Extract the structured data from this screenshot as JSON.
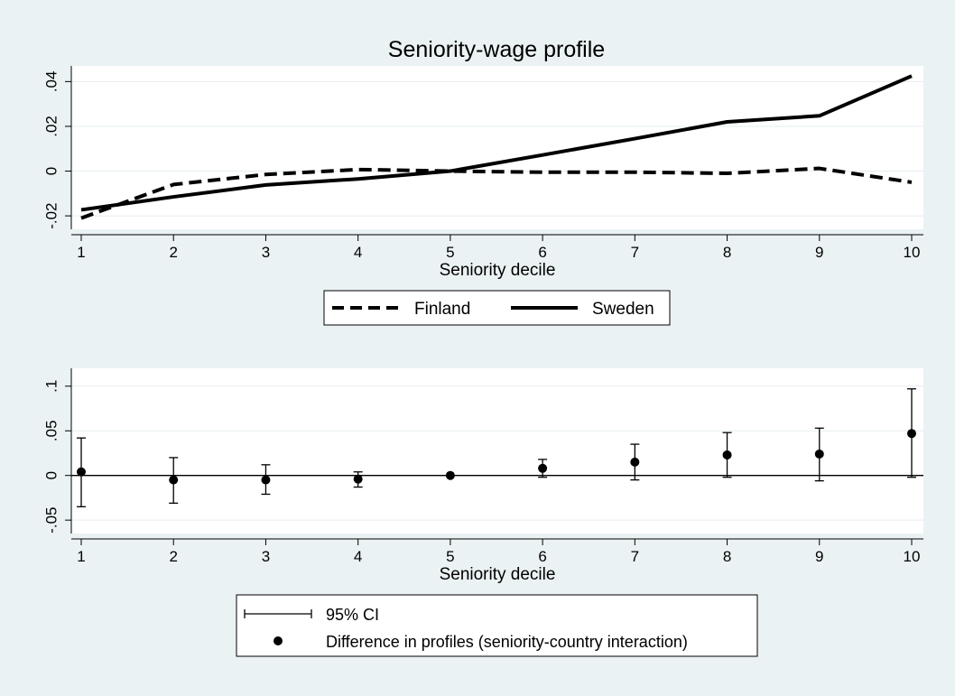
{
  "chart_data": [
    {
      "type": "line",
      "title": "Seniority-wage profile",
      "xlabel": "Seniority decile",
      "ylabel": "",
      "x": [
        1,
        2,
        3,
        4,
        5,
        6,
        7,
        8,
        9,
        10
      ],
      "xticks": [
        "1",
        "2",
        "3",
        "4",
        "5",
        "6",
        "7",
        "8",
        "9",
        "10"
      ],
      "xlim": [
        1,
        10
      ],
      "ylim": [
        -0.026,
        0.047
      ],
      "yticks": [
        -0.02,
        0,
        0.02,
        0.04
      ],
      "ytick_labels": [
        "-.02",
        "0",
        ".02",
        ".04"
      ],
      "grid": true,
      "legend_position": "bottom",
      "series": [
        {
          "name": "Finland",
          "style": "dashed",
          "values": [
            -0.021,
            -0.006,
            -0.0015,
            0.0007,
            0.0,
            -0.0005,
            -0.0005,
            -0.001,
            0.0012,
            -0.005
          ]
        },
        {
          "name": "Sweden",
          "style": "solid",
          "values": [
            -0.0173,
            -0.0115,
            -0.0062,
            -0.0035,
            0.0,
            0.0072,
            0.0145,
            0.022,
            0.0247,
            0.0425
          ]
        }
      ]
    },
    {
      "type": "scatter",
      "title": "",
      "xlabel": "Seniority decile",
      "ylabel": "",
      "x": [
        1,
        2,
        3,
        4,
        5,
        6,
        7,
        8,
        9,
        10
      ],
      "xticks": [
        "1",
        "2",
        "3",
        "4",
        "5",
        "6",
        "7",
        "8",
        "9",
        "10"
      ],
      "xlim": [
        1,
        10
      ],
      "ylim": [
        -0.065,
        0.12
      ],
      "yticks": [
        -0.05,
        0,
        0.05,
        0.1
      ],
      "ytick_labels": [
        "-.05",
        "0",
        ".05",
        ".1"
      ],
      "grid": true,
      "reference_line": 0,
      "legend_position": "bottom",
      "series": [
        {
          "name": "Difference in profiles (seniority-country interaction)",
          "values": [
            0.004,
            -0.005,
            -0.005,
            -0.004,
            0.0,
            0.008,
            0.015,
            0.023,
            0.024,
            0.047
          ]
        },
        {
          "name": "95% CI",
          "lower": [
            -0.035,
            -0.031,
            -0.021,
            -0.013,
            0.0,
            -0.002,
            -0.005,
            -0.002,
            -0.006,
            -0.002
          ],
          "upper": [
            0.042,
            0.02,
            0.012,
            0.004,
            0.0,
            0.018,
            0.035,
            0.048,
            0.053,
            0.097
          ]
        }
      ]
    }
  ]
}
